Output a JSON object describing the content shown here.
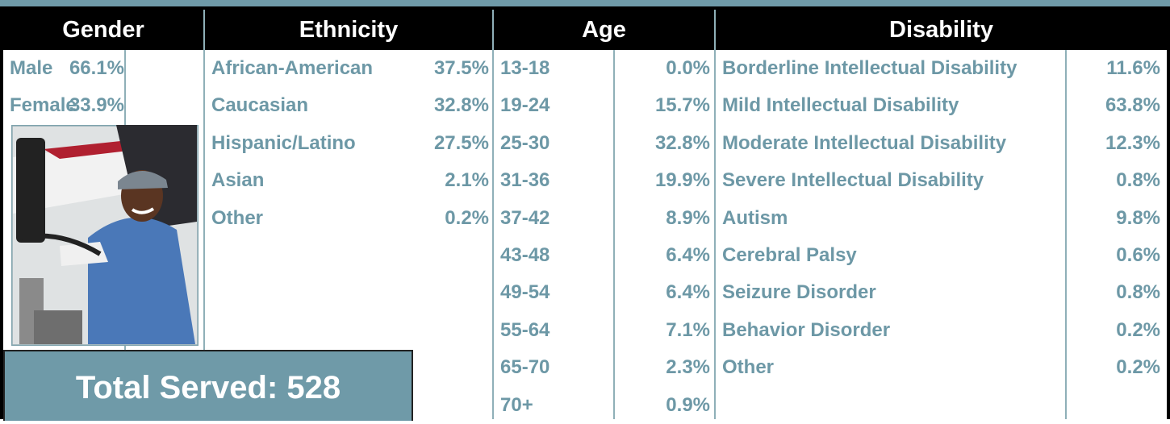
{
  "headers": {
    "gender": "Gender",
    "ethnicity": "Ethnicity",
    "age": "Age",
    "disability": "Disability"
  },
  "gender": [
    [
      "Male",
      "66.1%"
    ],
    [
      "Female",
      "33.9%"
    ]
  ],
  "ethnicity": [
    [
      "African-American",
      "37.5%"
    ],
    [
      "Caucasian",
      "32.8%"
    ],
    [
      "Hispanic/Latino",
      "27.5%"
    ],
    [
      "Asian",
      "2.1%"
    ],
    [
      "Other",
      "0.2%"
    ]
  ],
  "age": [
    [
      "13-18",
      "0.0%"
    ],
    [
      "19-24",
      "15.7%"
    ],
    [
      "25-30",
      "32.8%"
    ],
    [
      "31-36",
      "19.9%"
    ],
    [
      "37-42",
      "8.9%"
    ],
    [
      "43-48",
      "6.4%"
    ],
    [
      "49-54",
      "6.4%"
    ],
    [
      "55-64",
      "7.1%"
    ],
    [
      "65-70",
      "2.3%"
    ],
    [
      "70+",
      "0.9%"
    ]
  ],
  "disability": [
    [
      "Borderline Intellectual Disability",
      "11.6%"
    ],
    [
      "Mild Intellectual Disability",
      "63.8%"
    ],
    [
      "Moderate Intellectual Disability",
      "12.3%"
    ],
    [
      "Severe Intellectual Disability",
      "0.8%"
    ],
    [
      "Autism",
      "9.8%"
    ],
    [
      "Cerebral Palsy",
      "0.6%"
    ],
    [
      "Seizure Disorder",
      "0.8%"
    ],
    [
      "Behavior Disorder",
      "0.2%"
    ],
    [
      "Other",
      "0.2%"
    ]
  ],
  "total": "Total Served: 528"
}
